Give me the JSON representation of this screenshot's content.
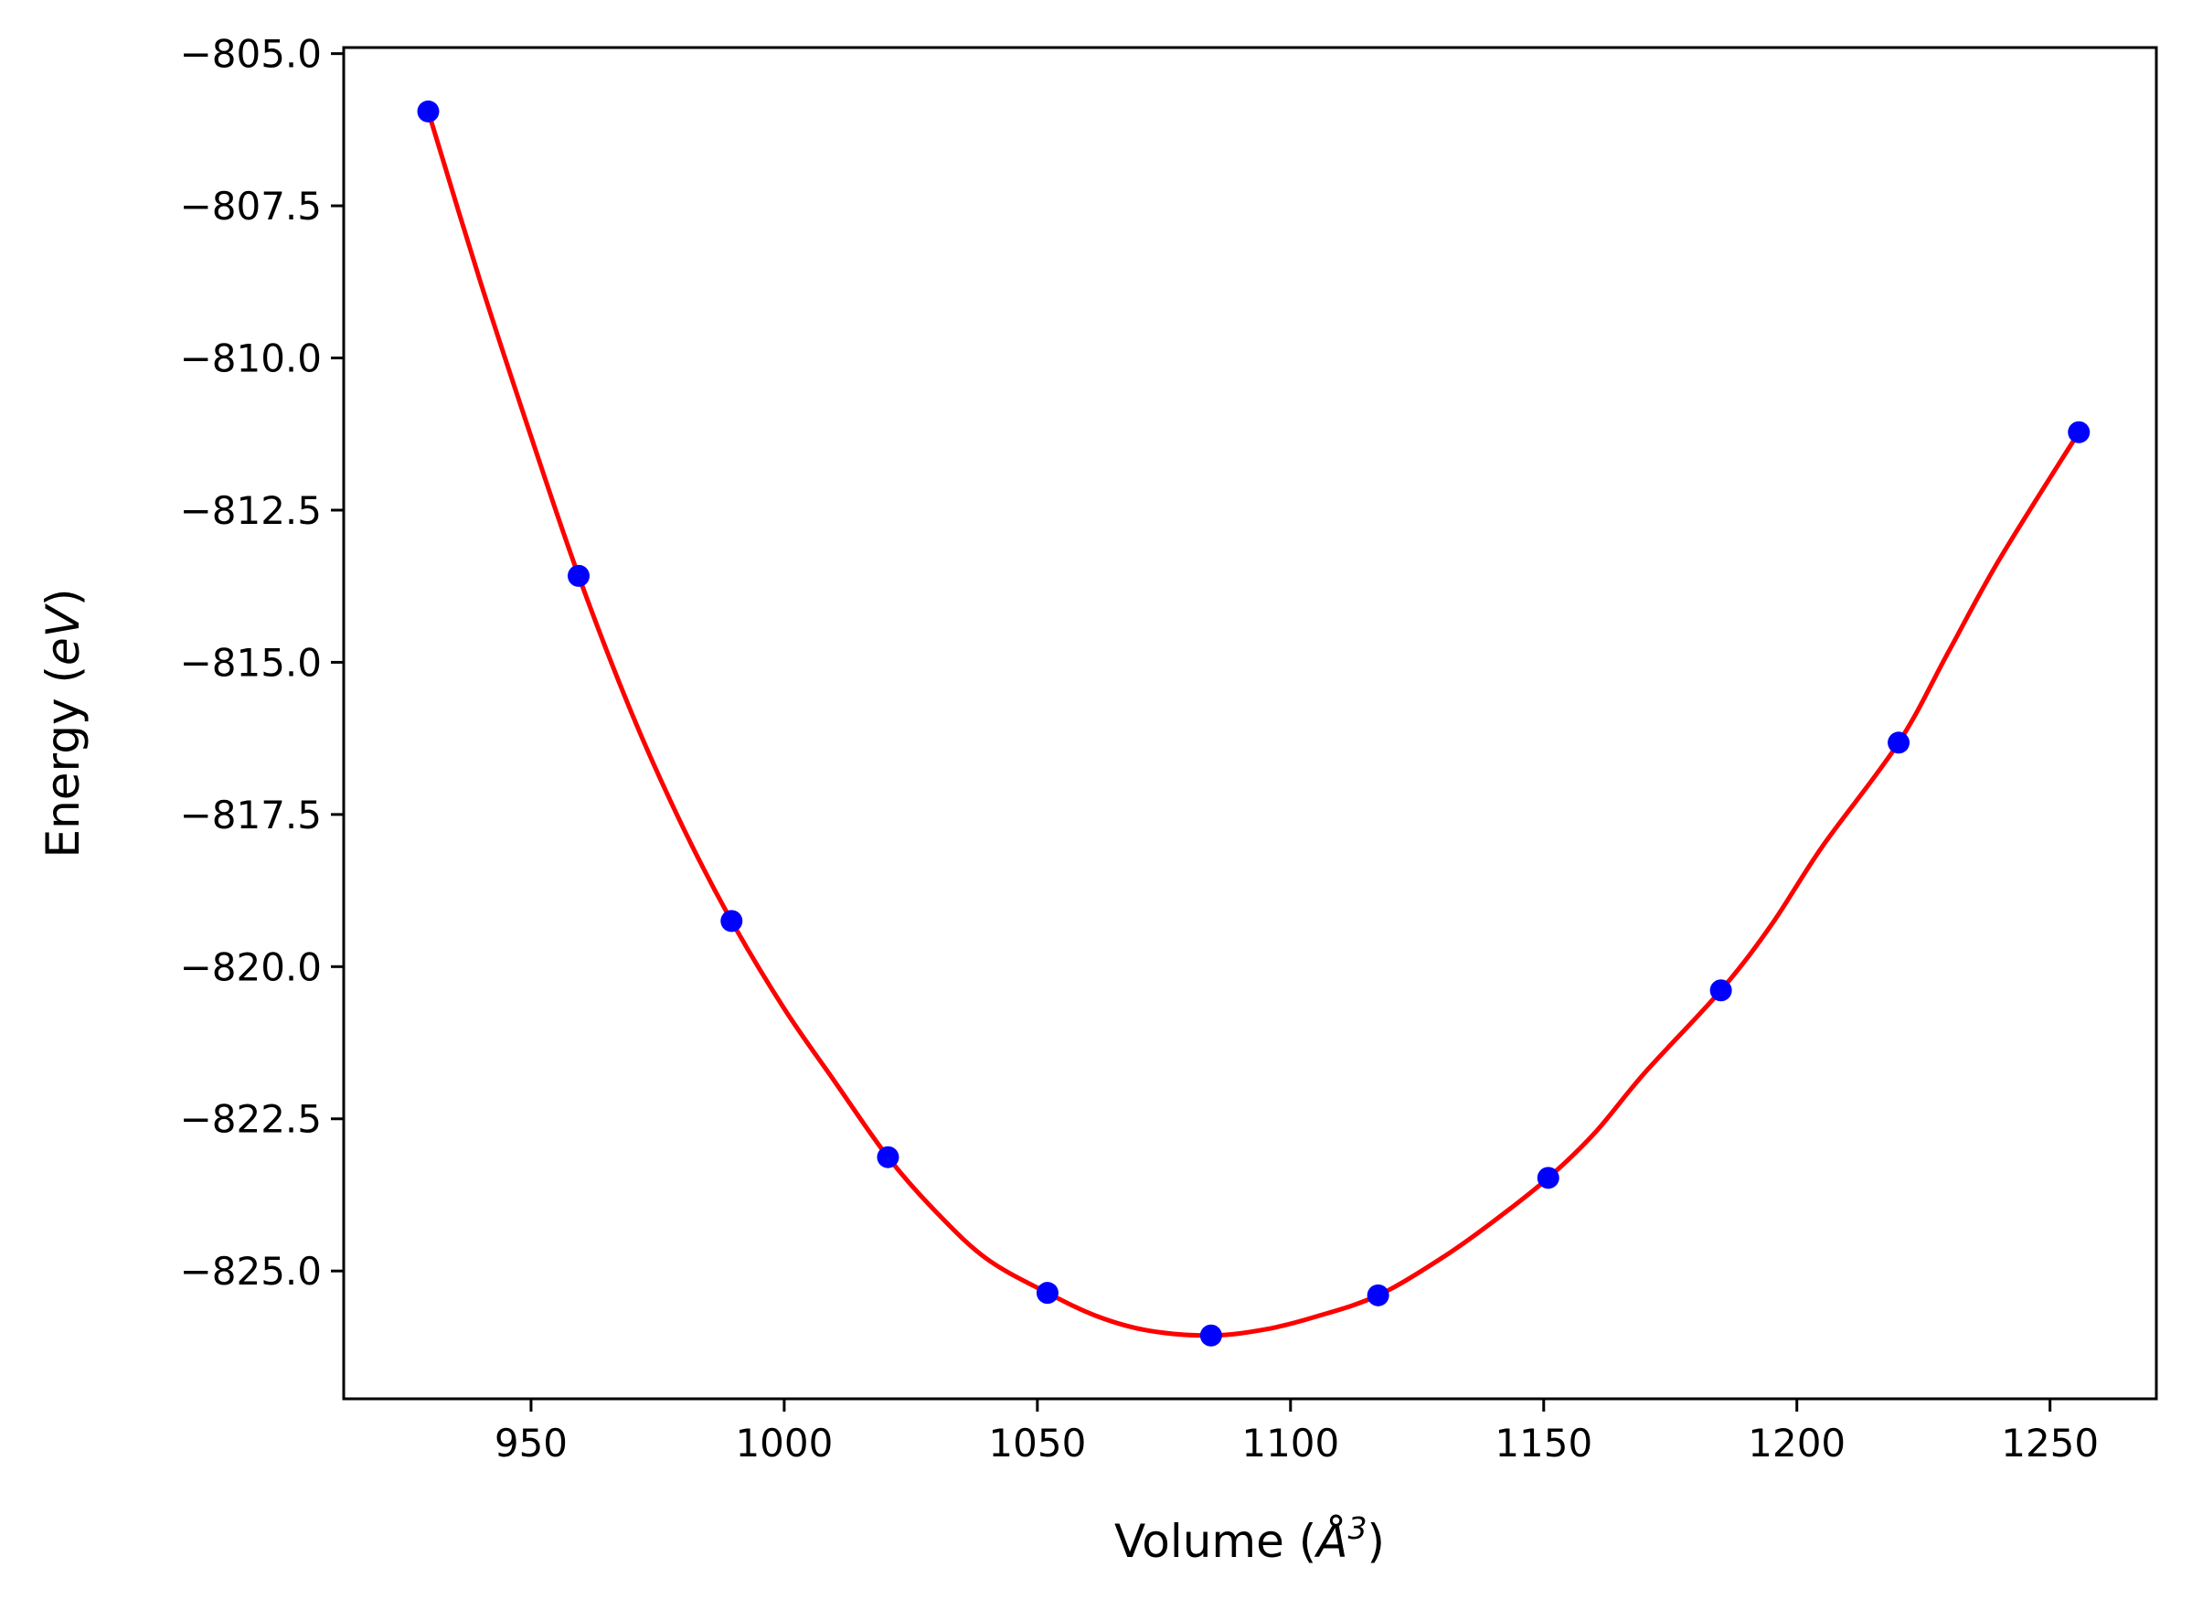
{
  "chart_data": {
    "type": "line",
    "title": "",
    "xlabel": {
      "prefix": "Volume (",
      "symbol": "Å",
      "superscript": "3",
      "suffix": ")"
    },
    "ylabel": {
      "prefix": "Energy (",
      "unit": "eV",
      "suffix": ")"
    },
    "xlim": [
      913,
      1271
    ],
    "ylim": [
      -827.1,
      -804.9
    ],
    "x_ticks": [
      950,
      1000,
      1050,
      1100,
      1150,
      1200,
      1250
    ],
    "x_tick_labels": [
      "950",
      "1000",
      "1050",
      "1100",
      "1150",
      "1200",
      "1250"
    ],
    "y_ticks": [
      -805.0,
      -807.5,
      -810.0,
      -812.5,
      -815.0,
      -817.5,
      -820.0,
      -822.5,
      -825.0
    ],
    "y_tick_labels": [
      "−805.0",
      "−807.5",
      "−810.0",
      "−812.5",
      "−815.0",
      "−817.5",
      "−820.0",
      "−822.5",
      "−825.0"
    ],
    "grid": false,
    "series": [
      {
        "style": "markers",
        "color": "#0000ff",
        "x": [
          929.7,
          959.4,
          989.6,
          1020.5,
          1052.0,
          1084.3,
          1117.3,
          1150.9,
          1185.0,
          1220.1,
          1255.7
        ],
        "y": [
          -805.95,
          -813.58,
          -819.25,
          -823.13,
          -825.36,
          -826.06,
          -825.4,
          -823.47,
          -820.39,
          -816.32,
          -811.22
        ]
      },
      {
        "style": "line",
        "color": "#ff0000",
        "x": [
          929.7,
          940,
          950,
          959.4,
          970,
          980,
          989.6,
          1000,
          1010,
          1020.5,
          1030,
          1040,
          1052.0,
          1062,
          1072,
          1084.3,
          1095,
          1105,
          1117.3,
          1130,
          1140,
          1150.9,
          1160,
          1170,
          1185.0,
          1195,
          1205,
          1220.1,
          1230,
          1240,
          1255.7
        ],
        "y": [
          -805.95,
          -808.75,
          -811.29,
          -813.58,
          -815.86,
          -817.71,
          -819.25,
          -820.69,
          -821.89,
          -823.13,
          -824.03,
          -824.8,
          -825.36,
          -825.75,
          -825.98,
          -826.06,
          -825.96,
          -825.75,
          -825.4,
          -824.78,
          -824.19,
          -823.47,
          -822.74,
          -821.74,
          -820.39,
          -819.31,
          -818.03,
          -816.32,
          -814.82,
          -813.31,
          -811.22
        ]
      }
    ]
  }
}
